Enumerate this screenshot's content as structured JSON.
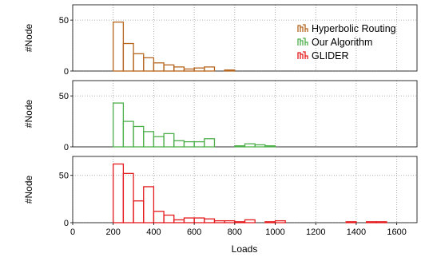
{
  "chart_data": {
    "type": "bar",
    "subtype": "histogram",
    "x_axis": {
      "label": "Loads",
      "range": [
        0,
        1700
      ],
      "ticks": [
        0,
        200,
        400,
        600,
        800,
        1000,
        1200,
        1400,
        1600
      ]
    },
    "legend": {
      "placement": "top-right"
    },
    "grid": {
      "style": "dotted",
      "on": true
    },
    "panels": [
      {
        "name": "Hyperbolic Routing",
        "color": "#b5651d",
        "ylabel": "#Node",
        "ylim": [
          0,
          65
        ],
        "yticks": [
          0,
          50
        ],
        "bins": [
          {
            "x0": 200,
            "x1": 250,
            "count": 48
          },
          {
            "x0": 250,
            "x1": 300,
            "count": 27
          },
          {
            "x0": 300,
            "x1": 350,
            "count": 17
          },
          {
            "x0": 350,
            "x1": 400,
            "count": 13
          },
          {
            "x0": 400,
            "x1": 450,
            "count": 8
          },
          {
            "x0": 450,
            "x1": 500,
            "count": 6
          },
          {
            "x0": 500,
            "x1": 550,
            "count": 4
          },
          {
            "x0": 550,
            "x1": 600,
            "count": 2
          },
          {
            "x0": 600,
            "x1": 650,
            "count": 3
          },
          {
            "x0": 650,
            "x1": 700,
            "count": 4
          },
          {
            "x0": 750,
            "x1": 800,
            "count": 1
          }
        ]
      },
      {
        "name": "Our Algorithm",
        "color": "#4daf4a",
        "ylabel": "#Node",
        "ylim": [
          0,
          65
        ],
        "yticks": [
          0,
          50
        ],
        "bins": [
          {
            "x0": 200,
            "x1": 250,
            "count": 43
          },
          {
            "x0": 250,
            "x1": 300,
            "count": 25
          },
          {
            "x0": 300,
            "x1": 350,
            "count": 20
          },
          {
            "x0": 350,
            "x1": 400,
            "count": 15
          },
          {
            "x0": 400,
            "x1": 450,
            "count": 10
          },
          {
            "x0": 450,
            "x1": 500,
            "count": 13
          },
          {
            "x0": 500,
            "x1": 550,
            "count": 6
          },
          {
            "x0": 550,
            "x1": 600,
            "count": 5
          },
          {
            "x0": 600,
            "x1": 650,
            "count": 5
          },
          {
            "x0": 650,
            "x1": 700,
            "count": 8
          },
          {
            "x0": 800,
            "x1": 850,
            "count": 1
          },
          {
            "x0": 850,
            "x1": 900,
            "count": 3
          },
          {
            "x0": 900,
            "x1": 950,
            "count": 2
          },
          {
            "x0": 950,
            "x1": 1000,
            "count": 1
          }
        ]
      },
      {
        "name": "GLIDER",
        "color": "#e41a1c",
        "ylabel": "#Node",
        "ylim": [
          0,
          70
        ],
        "yticks": [
          0,
          50
        ],
        "bins": [
          {
            "x0": 200,
            "x1": 250,
            "count": 62
          },
          {
            "x0": 250,
            "x1": 300,
            "count": 52
          },
          {
            "x0": 300,
            "x1": 350,
            "count": 23
          },
          {
            "x0": 350,
            "x1": 400,
            "count": 38
          },
          {
            "x0": 400,
            "x1": 450,
            "count": 12
          },
          {
            "x0": 450,
            "x1": 500,
            "count": 8
          },
          {
            "x0": 500,
            "x1": 550,
            "count": 3
          },
          {
            "x0": 550,
            "x1": 600,
            "count": 5
          },
          {
            "x0": 600,
            "x1": 650,
            "count": 5
          },
          {
            "x0": 650,
            "x1": 700,
            "count": 4
          },
          {
            "x0": 700,
            "x1": 750,
            "count": 2
          },
          {
            "x0": 750,
            "x1": 800,
            "count": 2
          },
          {
            "x0": 800,
            "x1": 850,
            "count": 1
          },
          {
            "x0": 850,
            "x1": 900,
            "count": 3
          },
          {
            "x0": 950,
            "x1": 1000,
            "count": 1
          },
          {
            "x0": 1000,
            "x1": 1050,
            "count": 2
          },
          {
            "x0": 1350,
            "x1": 1400,
            "count": 1
          },
          {
            "x0": 1450,
            "x1": 1500,
            "count": 1
          },
          {
            "x0": 1500,
            "x1": 1550,
            "count": 1
          }
        ]
      }
    ]
  }
}
